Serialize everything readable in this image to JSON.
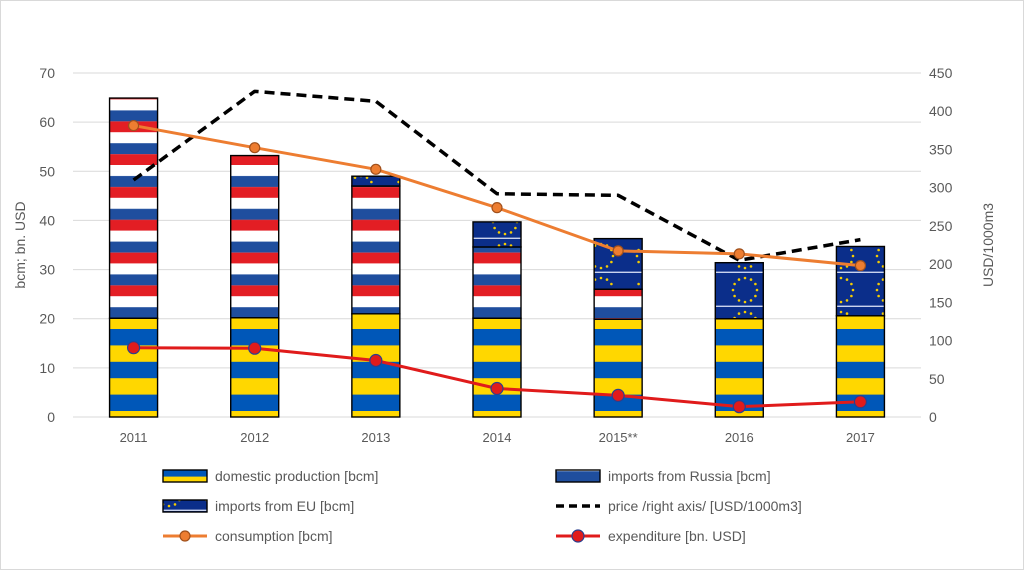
{
  "chart_data": {
    "type": "bar",
    "categories": [
      "2011",
      "2012",
      "2013",
      "2014",
      "2015**",
      "2016",
      "2017"
    ],
    "series": [
      {
        "name": "domestic production [bcm]",
        "kind": "stacked-bar",
        "axis": "left",
        "values": [
          20.1,
          20.2,
          21.0,
          20.1,
          19.9,
          20.0,
          20.6
        ]
      },
      {
        "name": "imports from Russia [bcm]",
        "kind": "stacked-bar",
        "axis": "left",
        "values": [
          44.8,
          33.0,
          26.0,
          14.5,
          6.1,
          0,
          0
        ]
      },
      {
        "name": "imports from EU [bcm]",
        "kind": "stacked-bar",
        "axis": "left",
        "values": [
          0,
          0,
          2.0,
          5.1,
          10.3,
          11.4,
          14.1
        ]
      },
      {
        "name": "price /right axis/ [USD/1000m3]",
        "kind": "line",
        "axis": "right",
        "values": [
          310,
          426,
          413,
          292,
          290,
          205,
          232
        ]
      },
      {
        "name": "consumption [bcm]",
        "kind": "line",
        "axis": "left",
        "values": [
          59.3,
          54.8,
          50.4,
          42.6,
          33.8,
          33.2,
          30.8
        ]
      },
      {
        "name": "expenditure [bn. USD]",
        "kind": "line",
        "axis": "left",
        "values": [
          14.1,
          14.0,
          11.5,
          5.8,
          4.4,
          2.1,
          3.1
        ]
      }
    ],
    "y_left": {
      "label": "bcm; bn. USD",
      "ylim": [
        0,
        70
      ],
      "ticks": [
        "0",
        "10",
        "20",
        "30",
        "40",
        "50",
        "60",
        "70"
      ]
    },
    "y_right": {
      "label": "USD/1000m3",
      "ylim": [
        0,
        450
      ],
      "ticks": [
        "0",
        "50",
        "100",
        "150",
        "200",
        "250",
        "300",
        "350",
        "400",
        "450"
      ]
    },
    "grid": true,
    "legend_position": "bottom",
    "colors": {
      "ukraine_blue": "#0057b8",
      "ukraine_yellow": "#ffd700",
      "russia_white": "#ffffff",
      "russia_blue": "#1f4e9e",
      "russia_red": "#e31e24",
      "eu_blue": "#0b2e8a",
      "eu_star": "#f5cc00",
      "price_line": "#000000",
      "consumption_line": "#ed7d31",
      "expenditure_line": "#e01b1b",
      "grid": "#d9d9d9",
      "text": "#595959"
    }
  }
}
